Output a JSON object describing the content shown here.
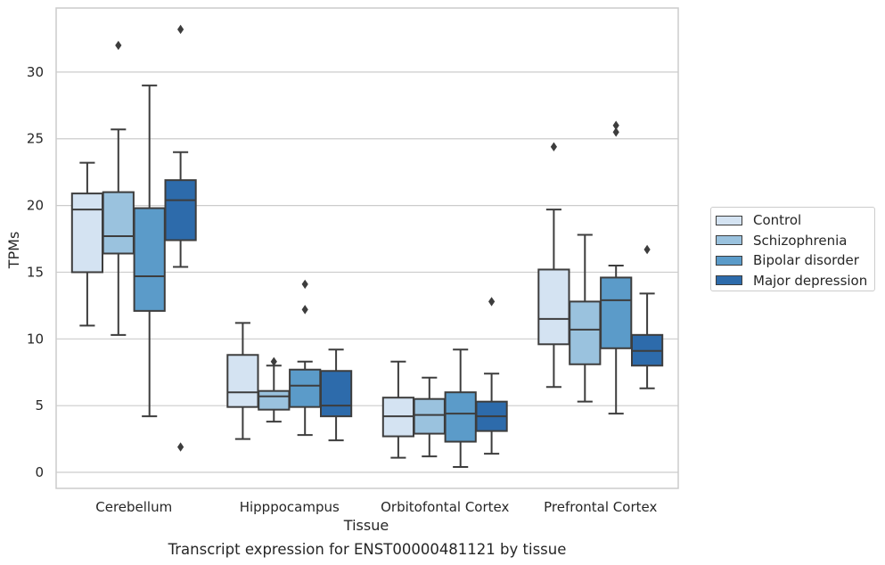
{
  "chart_data": {
    "type": "box",
    "title": "Transcript expression for ENST00000481121 by tissue",
    "xlabel": "Tissue",
    "ylabel": "TPMs",
    "ylim": [
      -1.2,
      34.8
    ],
    "yticks": [
      0,
      5,
      10,
      15,
      20,
      25,
      30
    ],
    "grid": "horizontal",
    "legend_position": "right",
    "categories": [
      "Cerebellum",
      "Hipppocampus",
      "Orbitofontal Cortex",
      "Prefrontal Cortex"
    ],
    "series": [
      {
        "name": "Control",
        "color": "#d4e3f2",
        "boxes": [
          {
            "whislo": 11.0,
            "q1": 15.0,
            "med": 19.7,
            "q3": 20.9,
            "whishi": 23.2,
            "fliers": []
          },
          {
            "whislo": 2.5,
            "q1": 4.9,
            "med": 6.0,
            "q3": 8.8,
            "whishi": 11.2,
            "fliers": []
          },
          {
            "whislo": 1.1,
            "q1": 2.7,
            "med": 4.2,
            "q3": 5.6,
            "whishi": 8.3,
            "fliers": []
          },
          {
            "whislo": 6.4,
            "q1": 9.6,
            "med": 11.5,
            "q3": 15.2,
            "whishi": 19.7,
            "fliers": [
              24.4
            ]
          }
        ]
      },
      {
        "name": "Schizophrenia",
        "color": "#9ac2de",
        "boxes": [
          {
            "whislo": 10.3,
            "q1": 16.4,
            "med": 17.7,
            "q3": 21.0,
            "whishi": 25.7,
            "fliers": [
              32.0
            ]
          },
          {
            "whislo": 3.8,
            "q1": 4.7,
            "med": 5.7,
            "q3": 6.1,
            "whishi": 8.0,
            "fliers": [
              8.3
            ]
          },
          {
            "whislo": 1.2,
            "q1": 2.9,
            "med": 4.3,
            "q3": 5.5,
            "whishi": 7.1,
            "fliers": []
          },
          {
            "whislo": 5.3,
            "q1": 8.1,
            "med": 10.7,
            "q3": 12.8,
            "whishi": 17.8,
            "fliers": []
          }
        ]
      },
      {
        "name": "Bipolar disorder",
        "color": "#5b9bc9",
        "boxes": [
          {
            "whislo": 4.2,
            "q1": 12.1,
            "med": 14.7,
            "q3": 19.8,
            "whishi": 29.0,
            "fliers": []
          },
          {
            "whislo": 2.8,
            "q1": 4.9,
            "med": 6.5,
            "q3": 7.7,
            "whishi": 8.3,
            "fliers": [
              12.2,
              14.1
            ]
          },
          {
            "whislo": 0.4,
            "q1": 2.3,
            "med": 4.4,
            "q3": 6.0,
            "whishi": 9.2,
            "fliers": []
          },
          {
            "whislo": 4.4,
            "q1": 9.3,
            "med": 12.9,
            "q3": 14.6,
            "whishi": 15.5,
            "fliers": [
              25.5,
              26.0
            ]
          }
        ]
      },
      {
        "name": "Major depression",
        "color": "#2d6bab",
        "boxes": [
          {
            "whislo": 15.4,
            "q1": 17.4,
            "med": 20.4,
            "q3": 21.9,
            "whishi": 24.0,
            "fliers": [
              33.2,
              1.9
            ]
          },
          {
            "whislo": 2.4,
            "q1": 4.2,
            "med": 5.0,
            "q3": 7.6,
            "whishi": 9.2,
            "fliers": []
          },
          {
            "whislo": 1.4,
            "q1": 3.1,
            "med": 4.2,
            "q3": 5.3,
            "whishi": 7.4,
            "fliers": [
              12.8
            ]
          },
          {
            "whislo": 6.3,
            "q1": 8.0,
            "med": 9.1,
            "q3": 10.3,
            "whishi": 13.4,
            "fliers": [
              16.7
            ]
          }
        ]
      }
    ]
  }
}
